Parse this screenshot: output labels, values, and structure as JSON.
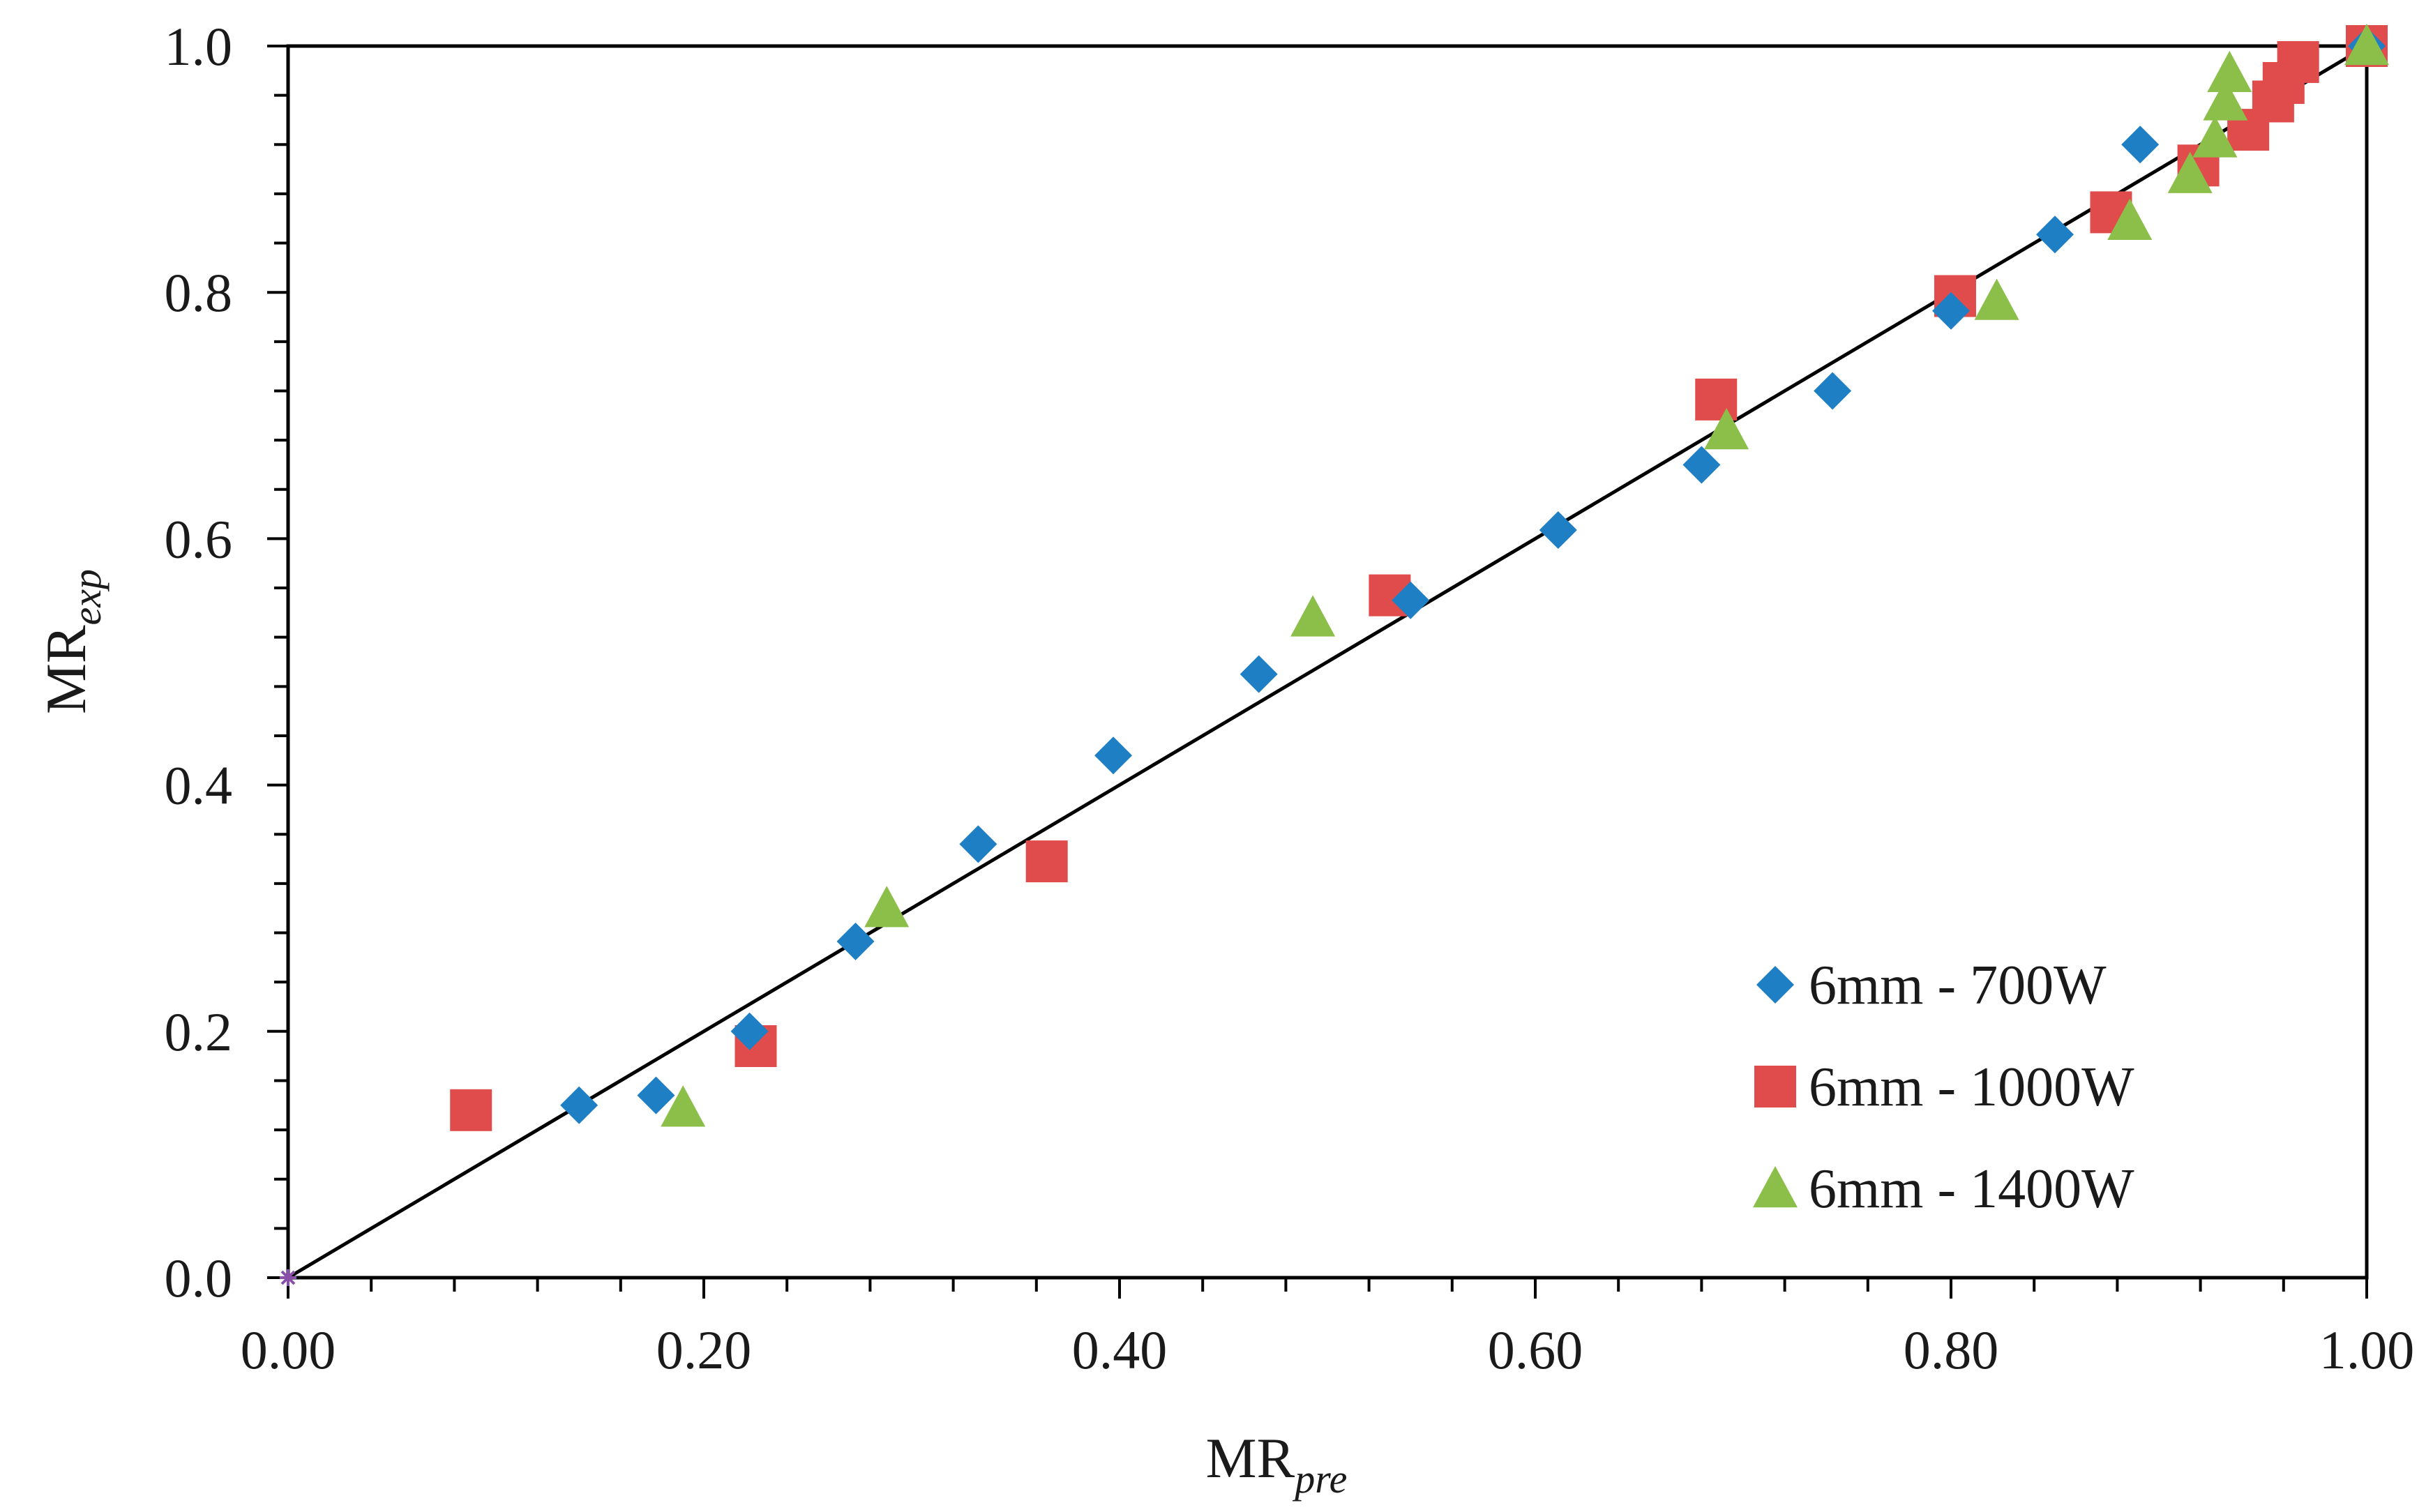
{
  "chart_data": {
    "type": "scatter",
    "title": "",
    "xlabel": {
      "main": "MR",
      "sub": "pre"
    },
    "ylabel": {
      "main": "MR",
      "sub": "exp"
    },
    "xlim": [
      0,
      1
    ],
    "ylim": [
      0,
      1
    ],
    "x_ticks": [
      0,
      0.2,
      0.4,
      0.6,
      0.8,
      1.0
    ],
    "x_tick_labels": [
      "0.00",
      "0.20",
      "0.40",
      "0.60",
      "0.80",
      "1.00"
    ],
    "y_ticks": [
      0,
      0.2,
      0.4,
      0.6,
      0.8,
      1.0
    ],
    "y_tick_labels": [
      "0.0",
      "0.2",
      "0.4",
      "0.6",
      "0.8",
      "1.0"
    ],
    "grid": false,
    "legend_position": "bottom-right",
    "reference_line": {
      "type": "y=x",
      "from": [
        0,
        0
      ],
      "to": [
        1,
        1
      ],
      "color": "#000000"
    },
    "series": [
      {
        "name": "6mm - 700W",
        "marker": "diamond",
        "color": "#1f7fc4",
        "points": [
          [
            0.14,
            0.14
          ],
          [
            0.177,
            0.148
          ],
          [
            0.222,
            0.2
          ],
          [
            0.273,
            0.273
          ],
          [
            0.332,
            0.352
          ],
          [
            0.397,
            0.424
          ],
          [
            0.467,
            0.49
          ],
          [
            0.54,
            0.55
          ],
          [
            0.611,
            0.607
          ],
          [
            0.68,
            0.66
          ],
          [
            0.743,
            0.72
          ],
          [
            0.8,
            0.785
          ],
          [
            0.85,
            0.847
          ],
          [
            0.891,
            0.92
          ],
          [
            1.0,
            1.0
          ]
        ]
      },
      {
        "name": "6mm - 1000W",
        "marker": "square",
        "color": "#e04c4c",
        "points": [
          [
            0.088,
            0.136
          ],
          [
            0.225,
            0.188
          ],
          [
            0.365,
            0.338
          ],
          [
            0.53,
            0.554
          ],
          [
            0.687,
            0.713
          ],
          [
            0.802,
            0.797
          ],
          [
            0.877,
            0.865
          ],
          [
            0.919,
            0.903
          ],
          [
            0.943,
            0.932
          ],
          [
            0.955,
            0.955
          ],
          [
            0.96,
            0.97
          ],
          [
            0.967,
            0.987
          ],
          [
            1.0,
            1.0
          ]
        ]
      },
      {
        "name": "6mm - 1400W",
        "marker": "triangle",
        "color": "#8cbf4a",
        "points": [
          [
            0.19,
            0.138
          ],
          [
            0.288,
            0.3
          ],
          [
            0.493,
            0.536
          ],
          [
            0.692,
            0.688
          ],
          [
            0.822,
            0.793
          ],
          [
            0.886,
            0.858
          ],
          [
            0.915,
            0.896
          ],
          [
            0.927,
            0.925
          ],
          [
            0.932,
            0.955
          ],
          [
            0.934,
            0.978
          ],
          [
            1.0,
            1.0
          ]
        ]
      }
    ],
    "origin_marker": {
      "x": 0,
      "y": 0,
      "color": "#8a4fa8"
    }
  }
}
